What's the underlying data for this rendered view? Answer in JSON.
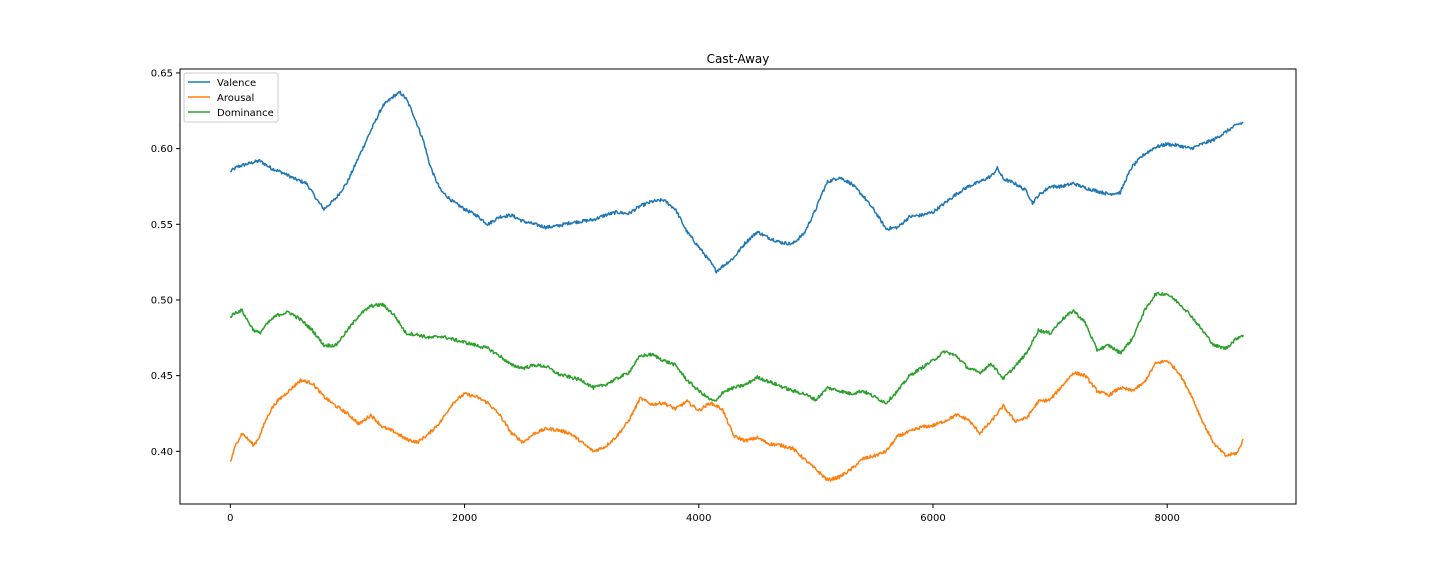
{
  "chart_data": {
    "type": "line",
    "title": "Cast-Away",
    "xlabel": "",
    "ylabel": "",
    "xlim": [
      -430,
      9100
    ],
    "ylim": [
      0.3652,
      0.6526
    ],
    "xticks": [
      0,
      2000,
      4000,
      6000,
      8000
    ],
    "xtick_labels": [
      "0",
      "2000",
      "4000",
      "6000",
      "8000"
    ],
    "yticks": [
      0.4,
      0.45,
      0.5,
      0.55,
      0.6,
      0.65
    ],
    "ytick_labels": [
      "0.40",
      "0.45",
      "0.50",
      "0.55",
      "0.60",
      "0.65"
    ],
    "grid": false,
    "legend_position": "upper-left",
    "series": [
      {
        "name": "Valence",
        "color": "#1f77b4",
        "x": [
          0,
          60,
          150,
          250,
          350,
          450,
          550,
          650,
          750,
          800,
          900,
          1000,
          1100,
          1200,
          1300,
          1400,
          1450,
          1500,
          1550,
          1600,
          1650,
          1700,
          1750,
          1800,
          1900,
          2000,
          2100,
          2200,
          2300,
          2400,
          2500,
          2600,
          2700,
          2800,
          2900,
          3000,
          3100,
          3200,
          3300,
          3400,
          3500,
          3600,
          3700,
          3800,
          3900,
          4000,
          4100,
          4150,
          4200,
          4300,
          4400,
          4500,
          4600,
          4700,
          4800,
          4900,
          5000,
          5050,
          5100,
          5200,
          5300,
          5400,
          5500,
          5600,
          5700,
          5800,
          5900,
          6000,
          6100,
          6200,
          6300,
          6400,
          6500,
          6550,
          6600,
          6700,
          6800,
          6850,
          6900,
          7000,
          7100,
          7200,
          7300,
          7400,
          7500,
          7600,
          7650,
          7700,
          7800,
          7900,
          8000,
          8100,
          8200,
          8300,
          8400,
          8500,
          8600,
          8650
        ],
        "y": [
          0.585,
          0.588,
          0.59,
          0.592,
          0.587,
          0.584,
          0.58,
          0.577,
          0.565,
          0.56,
          0.567,
          0.578,
          0.595,
          0.612,
          0.628,
          0.635,
          0.637,
          0.633,
          0.625,
          0.615,
          0.605,
          0.59,
          0.58,
          0.572,
          0.565,
          0.56,
          0.556,
          0.55,
          0.555,
          0.556,
          0.552,
          0.55,
          0.548,
          0.549,
          0.551,
          0.552,
          0.553,
          0.556,
          0.558,
          0.557,
          0.562,
          0.565,
          0.566,
          0.56,
          0.545,
          0.535,
          0.525,
          0.519,
          0.522,
          0.528,
          0.538,
          0.545,
          0.541,
          0.538,
          0.537,
          0.544,
          0.56,
          0.57,
          0.578,
          0.581,
          0.577,
          0.569,
          0.559,
          0.547,
          0.548,
          0.555,
          0.556,
          0.558,
          0.564,
          0.57,
          0.575,
          0.578,
          0.582,
          0.587,
          0.58,
          0.577,
          0.572,
          0.564,
          0.569,
          0.575,
          0.575,
          0.577,
          0.574,
          0.572,
          0.57,
          0.571,
          0.58,
          0.588,
          0.596,
          0.601,
          0.603,
          0.602,
          0.6,
          0.603,
          0.606,
          0.611,
          0.616,
          0.617
        ]
      },
      {
        "name": "Arousal",
        "color": "#ff7f0e",
        "x": [
          0,
          50,
          100,
          150,
          200,
          250,
          300,
          350,
          400,
          500,
          600,
          700,
          800,
          900,
          1000,
          1100,
          1200,
          1300,
          1400,
          1500,
          1600,
          1700,
          1800,
          1900,
          2000,
          2100,
          2200,
          2300,
          2400,
          2500,
          2600,
          2700,
          2800,
          2900,
          3000,
          3100,
          3200,
          3300,
          3400,
          3500,
          3600,
          3700,
          3800,
          3900,
          4000,
          4100,
          4200,
          4300,
          4400,
          4500,
          4600,
          4700,
          4800,
          4900,
          5000,
          5100,
          5200,
          5300,
          5400,
          5500,
          5600,
          5700,
          5800,
          5900,
          6000,
          6100,
          6200,
          6300,
          6400,
          6500,
          6600,
          6700,
          6800,
          6900,
          7000,
          7100,
          7200,
          7300,
          7400,
          7500,
          7600,
          7700,
          7800,
          7900,
          8000,
          8100,
          8200,
          8300,
          8400,
          8500,
          8600,
          8650
        ],
        "y": [
          0.393,
          0.405,
          0.412,
          0.408,
          0.404,
          0.41,
          0.42,
          0.428,
          0.433,
          0.44,
          0.447,
          0.445,
          0.436,
          0.43,
          0.425,
          0.418,
          0.424,
          0.416,
          0.413,
          0.408,
          0.406,
          0.412,
          0.42,
          0.432,
          0.438,
          0.436,
          0.432,
          0.424,
          0.412,
          0.406,
          0.412,
          0.415,
          0.414,
          0.412,
          0.406,
          0.4,
          0.403,
          0.41,
          0.42,
          0.435,
          0.431,
          0.432,
          0.428,
          0.433,
          0.427,
          0.432,
          0.428,
          0.41,
          0.407,
          0.409,
          0.405,
          0.404,
          0.402,
          0.395,
          0.388,
          0.381,
          0.383,
          0.388,
          0.395,
          0.397,
          0.4,
          0.41,
          0.413,
          0.416,
          0.417,
          0.42,
          0.424,
          0.421,
          0.412,
          0.42,
          0.43,
          0.42,
          0.422,
          0.433,
          0.434,
          0.443,
          0.452,
          0.45,
          0.44,
          0.437,
          0.442,
          0.44,
          0.445,
          0.458,
          0.46,
          0.452,
          0.438,
          0.42,
          0.405,
          0.397,
          0.399,
          0.408
        ]
      },
      {
        "name": "Dominance",
        "color": "#2ca02c",
        "x": [
          0,
          50,
          100,
          150,
          200,
          250,
          300,
          350,
          400,
          500,
          600,
          700,
          800,
          900,
          1000,
          1100,
          1200,
          1300,
          1400,
          1500,
          1600,
          1700,
          1800,
          1900,
          2000,
          2100,
          2200,
          2300,
          2400,
          2500,
          2600,
          2700,
          2800,
          2900,
          3000,
          3100,
          3200,
          3300,
          3400,
          3500,
          3600,
          3700,
          3800,
          3900,
          4000,
          4100,
          4150,
          4200,
          4300,
          4400,
          4500,
          4600,
          4700,
          4800,
          4900,
          5000,
          5100,
          5200,
          5300,
          5400,
          5500,
          5600,
          5700,
          5800,
          5900,
          6000,
          6100,
          6200,
          6300,
          6400,
          6500,
          6600,
          6700,
          6800,
          6900,
          7000,
          7100,
          7200,
          7300,
          7400,
          7500,
          7600,
          7700,
          7800,
          7900,
          8000,
          8100,
          8200,
          8300,
          8400,
          8500,
          8600,
          8650
        ],
        "y": [
          0.489,
          0.492,
          0.493,
          0.486,
          0.48,
          0.478,
          0.483,
          0.487,
          0.49,
          0.492,
          0.487,
          0.48,
          0.47,
          0.47,
          0.48,
          0.49,
          0.496,
          0.497,
          0.49,
          0.478,
          0.477,
          0.475,
          0.476,
          0.474,
          0.472,
          0.47,
          0.468,
          0.463,
          0.457,
          0.455,
          0.457,
          0.456,
          0.451,
          0.449,
          0.447,
          0.442,
          0.444,
          0.448,
          0.452,
          0.463,
          0.464,
          0.46,
          0.457,
          0.447,
          0.44,
          0.434,
          0.433,
          0.439,
          0.442,
          0.444,
          0.449,
          0.446,
          0.443,
          0.44,
          0.438,
          0.434,
          0.442,
          0.44,
          0.438,
          0.44,
          0.436,
          0.432,
          0.44,
          0.45,
          0.455,
          0.46,
          0.466,
          0.463,
          0.455,
          0.452,
          0.458,
          0.448,
          0.456,
          0.465,
          0.48,
          0.478,
          0.487,
          0.493,
          0.485,
          0.467,
          0.47,
          0.465,
          0.474,
          0.492,
          0.504,
          0.504,
          0.498,
          0.49,
          0.48,
          0.47,
          0.468,
          0.475,
          0.477
        ]
      }
    ]
  }
}
